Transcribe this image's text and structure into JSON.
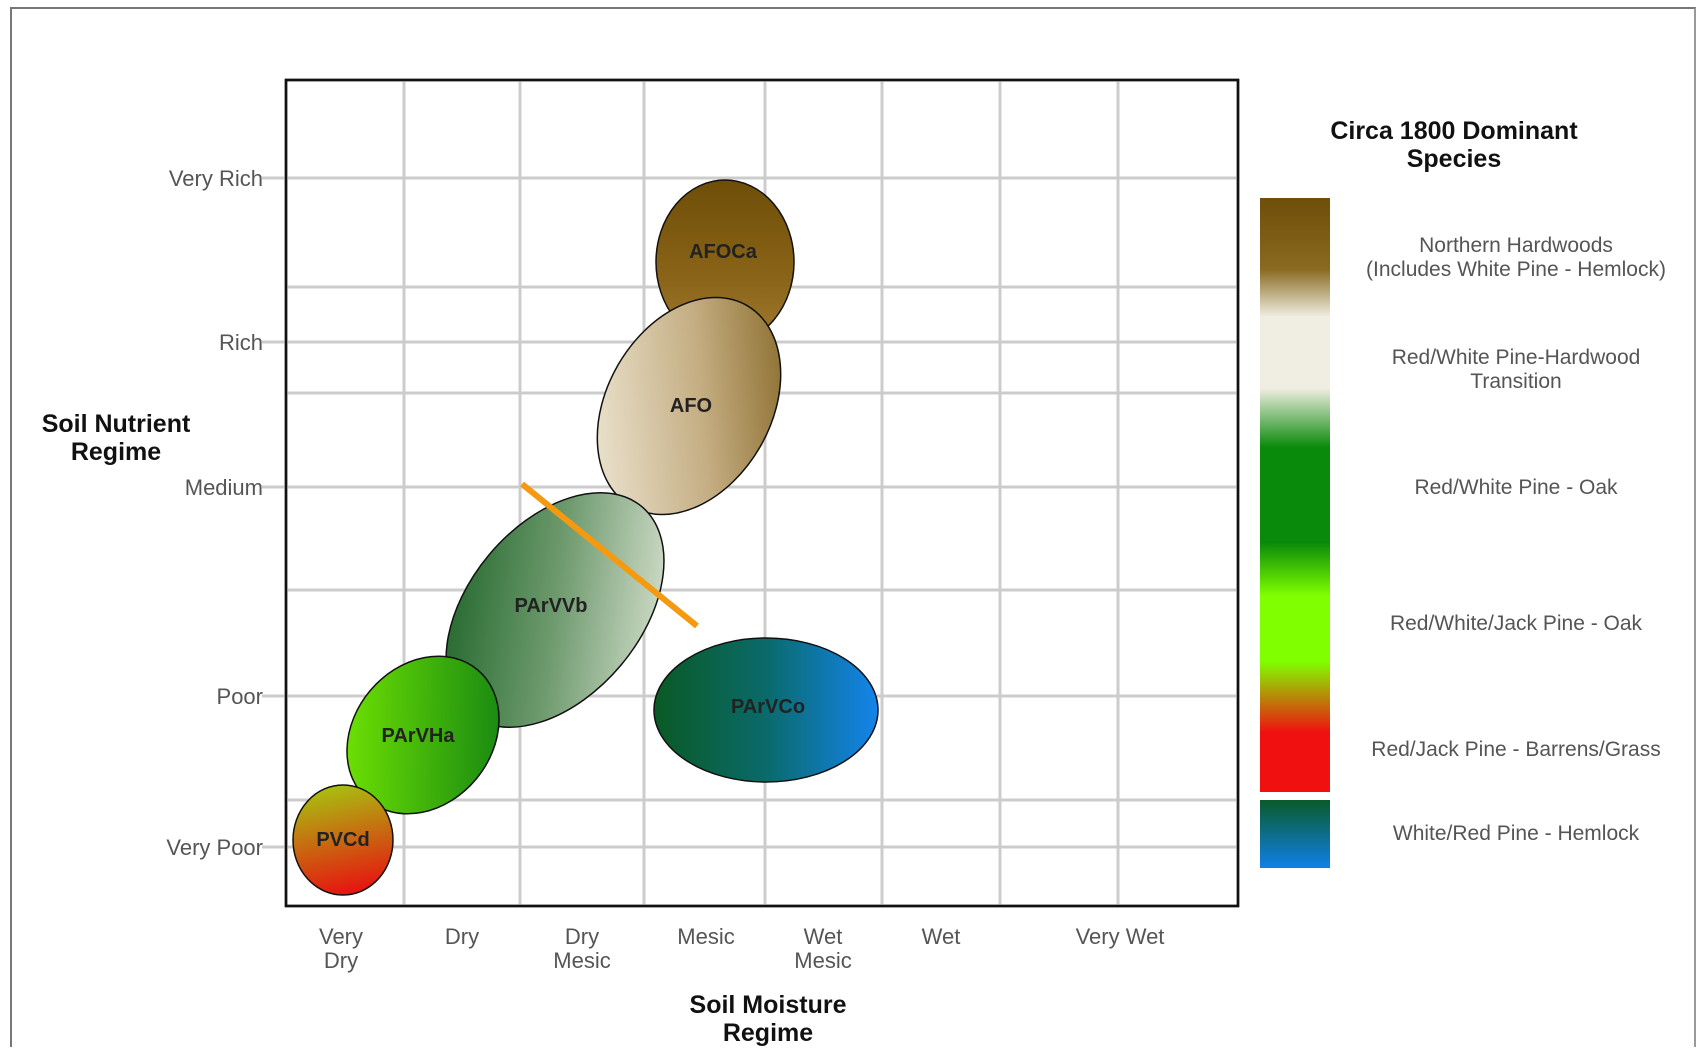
{
  "y_axis": {
    "title_lines": [
      "Soil Nutrient",
      "Regime"
    ],
    "levels": [
      "Very Rich",
      "Rich",
      "Medium",
      "Poor",
      "Very Poor"
    ]
  },
  "x_axis": {
    "title_lines": [
      "Soil Moisture",
      "Regime"
    ],
    "levels": [
      [
        "Very",
        "Dry"
      ],
      [
        "Dry"
      ],
      [
        "Dry",
        "Mesic"
      ],
      [
        "Mesic"
      ],
      [
        "Wet",
        "Mesic"
      ],
      [
        "Wet"
      ],
      [
        "Very Wet"
      ]
    ]
  },
  "zones": [
    "AFOCa",
    "AFO",
    "PArVVb",
    "PArVHa",
    "PVCd",
    "PArVCo"
  ],
  "legend": {
    "title_lines": [
      "Circa 1800 Dominant",
      "Species"
    ],
    "entries": [
      [
        "Northern Hardwoods",
        "(Includes White Pine - Hemlock)"
      ],
      [
        "Red/White Pine-Hardwood",
        "Transition"
      ],
      [
        "Red/White Pine - Oak"
      ],
      [
        "Red/White/Jack Pine - Oak"
      ],
      [
        "Red/Jack Pine - Barrens/Grass"
      ],
      [
        "White/Red Pine - Hemlock"
      ]
    ]
  },
  "colors": {
    "northern_hardwoods": "#7a5a10",
    "transition": "#f0efe4",
    "pine_oak": "#0a8a0a",
    "jack_pine_oak": "#7cf000",
    "barrens": "#f01010",
    "white_red_hemlock_start": "#0a5a2a",
    "white_red_hemlock_end": "#1080e8",
    "boundary_line": "#f59a10",
    "grid": "#cccccc"
  }
}
